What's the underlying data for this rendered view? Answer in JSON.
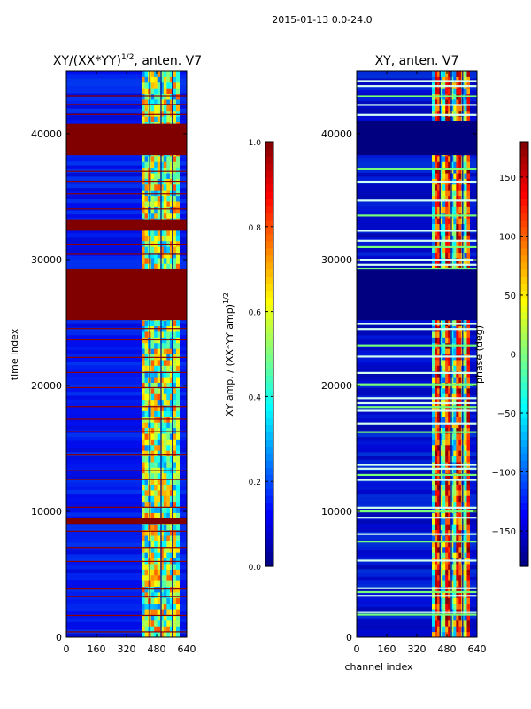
{
  "figure": {
    "suptitle": "2015-01-13 0.0-24.0"
  },
  "chart_data": [
    {
      "type": "heatmap",
      "title": "XY/(XX*YY)^{1/2}, anten. V7",
      "title_main": "XY/(XX*YY)",
      "title_sup": "1/2",
      "title_tail": ", anten. V7",
      "xlabel": "",
      "ylabel": "time index",
      "xlim": [
        0,
        640
      ],
      "ylim": [
        0,
        45000
      ],
      "xticks": [
        0,
        160,
        320,
        480,
        640
      ],
      "yticks": [
        0,
        10000,
        20000,
        30000,
        40000
      ],
      "colorbar": {
        "label": "XY amp. / (XX*YY amp)^{1/2}",
        "label_main": "XY amp. / (XX*YY amp)",
        "label_sup": "1/2",
        "range": [
          0.0,
          1.0
        ],
        "ticks": [
          "0.0",
          "0.2",
          "0.4",
          "0.6",
          "0.8",
          "1.0"
        ],
        "tick_values": [
          0.0,
          0.2,
          0.4,
          0.6,
          0.8,
          1.0
        ]
      },
      "colormap": "jet",
      "bands": [
        {
          "from": 25200,
          "to": 29300,
          "value": 1.0
        },
        {
          "from": 38300,
          "to": 40800,
          "value": 1.0
        },
        {
          "from": 32300,
          "to": 33200,
          "value": 1.0
        },
        {
          "from": 9000,
          "to": 9500,
          "value": 1.0
        }
      ],
      "lines": [
        400,
        1700,
        3200,
        3800,
        6000,
        7100,
        8400,
        10300,
        12500,
        13200,
        14500,
        16300,
        17300,
        18300,
        19800,
        21000,
        22200,
        23600,
        24500,
        30400,
        31200,
        34000,
        35200,
        36200,
        37000,
        41500,
        42300,
        43000
      ]
    },
    {
      "type": "heatmap",
      "title": "XY, anten. V7",
      "xlabel": "channel index",
      "ylabel": "",
      "xlim": [
        0,
        640
      ],
      "ylim": [
        0,
        45000
      ],
      "xticks": [
        0,
        160,
        320,
        480,
        640
      ],
      "yticks": [
        0,
        10000,
        20000,
        30000,
        40000
      ],
      "colorbar": {
        "label": "phase (deg)",
        "range": [
          -180,
          180
        ],
        "ticks": [
          "−150",
          "−100",
          "−50",
          "0",
          "50",
          "100",
          "150"
        ],
        "tick_values": [
          -150,
          -100,
          -50,
          0,
          50,
          100,
          150
        ]
      },
      "colormap": "jet",
      "bands": [
        {
          "from": 25200,
          "to": 29300,
          "value": -180
        },
        {
          "from": 38300,
          "to": 41000,
          "value": -180
        }
      ],
      "lines": [
        1800,
        2000,
        3300,
        3600,
        3900,
        6100,
        7600,
        8200,
        9500,
        10000,
        10300,
        12500,
        12900,
        13400,
        13700,
        16300,
        17000,
        18000,
        18300,
        18600,
        19000,
        20100,
        21000,
        22300,
        23200,
        24500,
        24900,
        29300,
        29600,
        30000,
        31000,
        31500,
        32300,
        33500,
        34700,
        36200,
        37200,
        41500,
        42300,
        43000,
        43800,
        44200
      ]
    }
  ]
}
